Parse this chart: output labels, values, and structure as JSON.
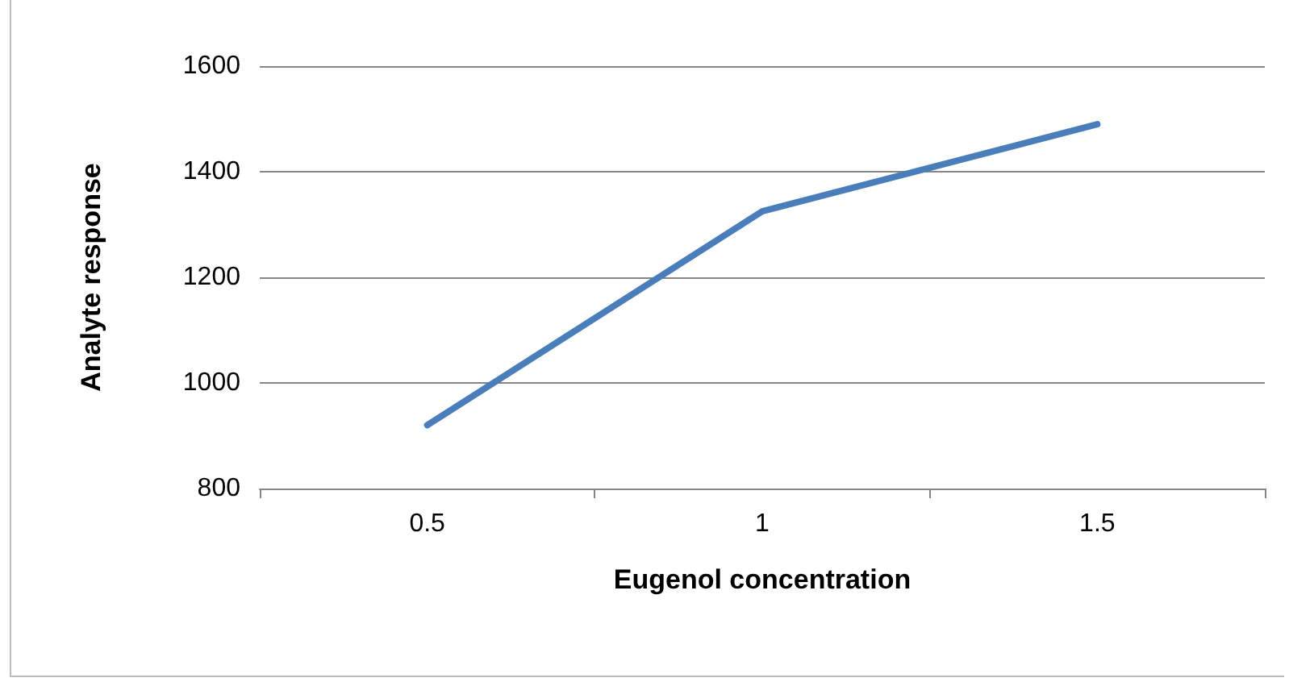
{
  "chart_data": {
    "type": "line",
    "xlabel": "Eugenol concentration",
    "ylabel": "Analyte response",
    "categories": [
      "0.5",
      "1",
      "1.5"
    ],
    "series": [
      {
        "color": "#4a7ebb",
        "values": [
          920,
          1325,
          1490
        ]
      }
    ],
    "ylim": [
      800,
      1600
    ],
    "yticks": [
      800,
      1000,
      1200,
      1400,
      1600
    ],
    "grid": "y",
    "marker": "none",
    "line_style": "solid"
  }
}
